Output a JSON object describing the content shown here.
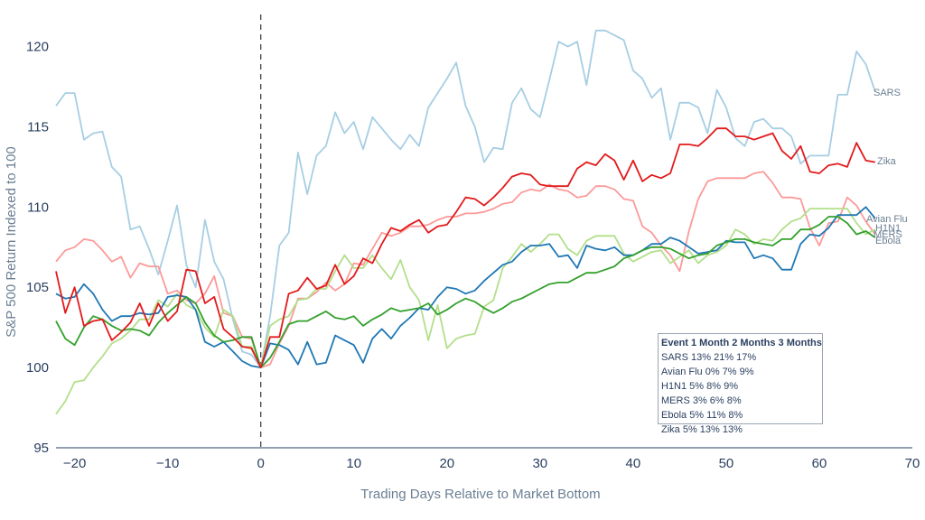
{
  "chart_data": {
    "type": "line",
    "title": "",
    "xlabel": "Trading Days Relative to Market Bottom",
    "ylabel": "S&P 500 Return Indexed to 100",
    "xlim": [
      -22,
      70
    ],
    "ylim": [
      95,
      122
    ],
    "x_ticks": [
      -20,
      -10,
      0,
      10,
      20,
      30,
      40,
      50,
      60,
      70
    ],
    "y_ticks": [
      95,
      100,
      105,
      110,
      115,
      120
    ],
    "x_tick_labels": [
      "−20",
      "−10",
      "0",
      "10",
      "20",
      "30",
      "40",
      "50",
      "60",
      "70"
    ],
    "y_tick_labels": [
      "95",
      "100",
      "105",
      "110",
      "115",
      "120"
    ],
    "vertical_reference_line": {
      "x": 0,
      "style": "dashed",
      "color": "#333333"
    },
    "grid": false,
    "x_start": -22,
    "series": [
      {
        "name": "SARS",
        "color": "#a6cee3",
        "values": [
          116.3,
          117.1,
          117.1,
          114.2,
          114.6,
          114.7,
          112.5,
          111.9,
          108.6,
          108.8,
          107.4,
          105.8,
          107.9,
          110.1,
          106.4,
          105.0,
          109.2,
          106.6,
          105.5,
          103.0,
          101.0,
          100.8,
          100.0,
          103.2,
          107.6,
          108.4,
          113.4,
          110.8,
          113.2,
          113.8,
          115.9,
          114.6,
          115.3,
          113.6,
          115.6,
          114.9,
          114.2,
          113.6,
          114.5,
          113.8,
          116.2,
          117.1,
          118.0,
          119.0,
          116.3,
          115.0,
          112.8,
          113.7,
          113.6,
          116.5,
          117.4,
          116.1,
          115.6,
          117.9,
          120.3,
          120.0,
          120.3,
          117.6,
          121.0,
          121.0,
          120.7,
          120.4,
          118.5,
          118.0,
          116.8,
          117.4,
          114.2,
          116.5,
          116.5,
          116.2,
          114.6,
          117.3,
          116.2,
          114.3,
          113.8,
          115.3,
          115.5,
          114.9,
          114.9,
          114.4,
          112.7,
          113.2,
          113.2,
          113.2,
          117.0,
          117.0,
          119.7,
          118.9,
          117.2
        ]
      },
      {
        "name": "Zika",
        "color": "#e31a1c",
        "values": [
          106.0,
          103.4,
          105.0,
          102.6,
          102.9,
          103.0,
          101.7,
          102.2,
          102.8,
          104.0,
          102.6,
          104.0,
          102.9,
          103.5,
          106.1,
          106.0,
          104.0,
          104.4,
          102.4,
          101.9,
          101.3,
          101.2,
          100.0,
          101.9,
          101.9,
          104.6,
          104.8,
          105.6,
          104.9,
          105.1,
          106.4,
          105.2,
          105.7,
          106.8,
          106.5,
          107.7,
          108.7,
          108.5,
          108.9,
          109.2,
          108.4,
          108.8,
          108.9,
          109.7,
          110.6,
          110.5,
          110.1,
          110.6,
          111.2,
          111.9,
          112.1,
          112.0,
          111.4,
          111.3,
          111.3,
          111.3,
          112.4,
          112.8,
          112.6,
          113.3,
          112.9,
          111.7,
          112.9,
          111.6,
          112.0,
          111.8,
          112.1,
          113.9,
          113.9,
          113.8,
          114.3,
          114.9,
          114.9,
          114.4,
          114.4,
          114.2,
          114.4,
          114.6,
          113.5,
          113.0,
          113.8,
          112.2,
          112.1,
          112.6,
          112.7,
          112.5,
          114.0,
          112.9,
          112.8
        ]
      },
      {
        "name": "Avian Flu",
        "color": "#1f78b4",
        "values": [
          104.6,
          104.3,
          104.4,
          105.2,
          104.6,
          103.6,
          102.9,
          103.2,
          103.2,
          103.4,
          103.3,
          103.4,
          104.4,
          104.5,
          104.4,
          103.6,
          101.6,
          101.3,
          101.6,
          101.0,
          100.4,
          100.1,
          100.0,
          101.5,
          101.4,
          101.1,
          100.2,
          101.6,
          100.2,
          100.3,
          102.0,
          101.7,
          101.4,
          100.3,
          101.8,
          102.4,
          101.8,
          102.6,
          103.1,
          103.7,
          103.6,
          104.4,
          105.0,
          104.9,
          104.6,
          104.8,
          105.4,
          105.9,
          106.4,
          106.6,
          107.2,
          107.6,
          107.6,
          107.7,
          106.9,
          107.0,
          106.2,
          107.6,
          107.4,
          107.3,
          107.5,
          107.0,
          107.0,
          107.3,
          107.7,
          107.7,
          108.1,
          107.9,
          107.5,
          107.1,
          107.2,
          107.3,
          107.9,
          107.8,
          107.8,
          106.8,
          107.0,
          106.8,
          106.1,
          106.1,
          107.7,
          108.3,
          108.2,
          108.7,
          109.5,
          109.5,
          109.5,
          110.0,
          109.3
        ]
      },
      {
        "name": "H1N1",
        "color": "#b2df8a",
        "values": [
          97.1,
          97.9,
          99.1,
          99.2,
          100.0,
          100.7,
          101.5,
          101.8,
          102.3,
          103.0,
          103.0,
          104.2,
          103.8,
          104.6,
          103.9,
          103.6,
          102.5,
          101.9,
          103.6,
          103.2,
          101.3,
          101.3,
          100.0,
          102.6,
          103.0,
          103.2,
          104.2,
          104.3,
          104.9,
          104.9,
          106.0,
          107.0,
          106.2,
          106.2,
          107.0,
          106.2,
          105.5,
          106.7,
          105.0,
          104.2,
          101.7,
          103.9,
          101.2,
          101.8,
          102.0,
          102.1,
          103.8,
          104.2,
          106.2,
          106.9,
          107.7,
          107.2,
          107.7,
          108.3,
          108.3,
          107.4,
          107.0,
          107.9,
          108.2,
          108.2,
          108.2,
          107.1,
          106.6,
          106.9,
          107.2,
          107.3,
          106.5,
          106.9,
          107.3,
          106.5,
          107.0,
          107.2,
          107.6,
          108.6,
          108.3,
          107.7,
          108.0,
          107.9,
          108.6,
          109.1,
          109.3,
          109.9,
          109.9,
          109.9,
          109.9,
          109.9,
          109.0,
          108.3,
          108.6
        ]
      },
      {
        "name": "MERS",
        "color": "#fb9a99",
        "values": [
          106.6,
          107.3,
          107.5,
          108.0,
          107.9,
          107.3,
          106.6,
          106.9,
          105.6,
          106.5,
          106.3,
          106.3,
          104.6,
          104.8,
          104.2,
          104.0,
          104.6,
          105.7,
          103.4,
          103.2,
          101.9,
          101.8,
          100.0,
          100.2,
          101.5,
          102.6,
          104.3,
          104.3,
          104.7,
          105.3,
          104.8,
          105.2,
          106.5,
          106.4,
          107.4,
          108.4,
          108.2,
          108.4,
          108.8,
          108.8,
          108.9,
          109.2,
          109.4,
          109.4,
          109.6,
          109.6,
          109.7,
          109.9,
          110.2,
          110.3,
          110.9,
          111.1,
          111.0,
          111.4,
          111.1,
          111.0,
          110.6,
          110.7,
          111.3,
          111.3,
          111.1,
          110.5,
          110.4,
          108.8,
          108.4,
          107.6,
          107.0,
          106.0,
          108.5,
          110.5,
          111.6,
          111.8,
          111.8,
          111.8,
          111.8,
          112.1,
          112.2,
          111.5,
          110.6,
          110.6,
          110.5,
          108.7,
          107.6,
          109.0,
          109.1,
          110.6,
          110.1,
          109.1,
          108.3
        ]
      },
      {
        "name": "Ebola",
        "color": "#33a02c",
        "values": [
          102.9,
          101.8,
          101.4,
          102.5,
          103.2,
          103.0,
          102.6,
          102.3,
          102.4,
          102.3,
          102.0,
          102.8,
          103.4,
          103.9,
          104.4,
          104.0,
          102.8,
          102.0,
          101.6,
          101.7,
          101.9,
          101.9,
          100.0,
          100.6,
          101.6,
          102.7,
          102.9,
          102.9,
          103.2,
          103.5,
          103.1,
          103.0,
          103.2,
          102.6,
          103.0,
          103.3,
          103.7,
          103.5,
          103.6,
          103.7,
          104.0,
          103.3,
          103.6,
          104.0,
          104.3,
          104.1,
          103.7,
          103.4,
          103.7,
          104.1,
          104.3,
          104.6,
          104.9,
          105.2,
          105.3,
          105.3,
          105.6,
          105.9,
          105.9,
          106.1,
          106.3,
          106.8,
          107.0,
          107.3,
          107.5,
          107.5,
          107.4,
          107.1,
          106.8,
          107.0,
          107.1,
          107.6,
          107.8,
          108.0,
          108.0,
          107.8,
          107.7,
          107.6,
          108.0,
          108.0,
          108.6,
          108.6,
          108.9,
          109.4,
          109.4,
          109.0,
          108.3,
          108.5,
          108.1
        ]
      }
    ],
    "series_end_labels": [
      "SARS",
      "Zika",
      "Avian Flu",
      "H1N1",
      "MERS",
      "Ebola"
    ],
    "table": {
      "header": "Event 1 Month 2 Months 3 Months",
      "rows": [
        "SARS 13% 21% 17%",
        "Avian Flu 0% 7% 9%",
        "H1N1 5% 8% 9%",
        "MERS 3% 6% 8%",
        "Ebola 5% 11% 8%",
        "Zika 5% 13% 13%"
      ]
    }
  }
}
